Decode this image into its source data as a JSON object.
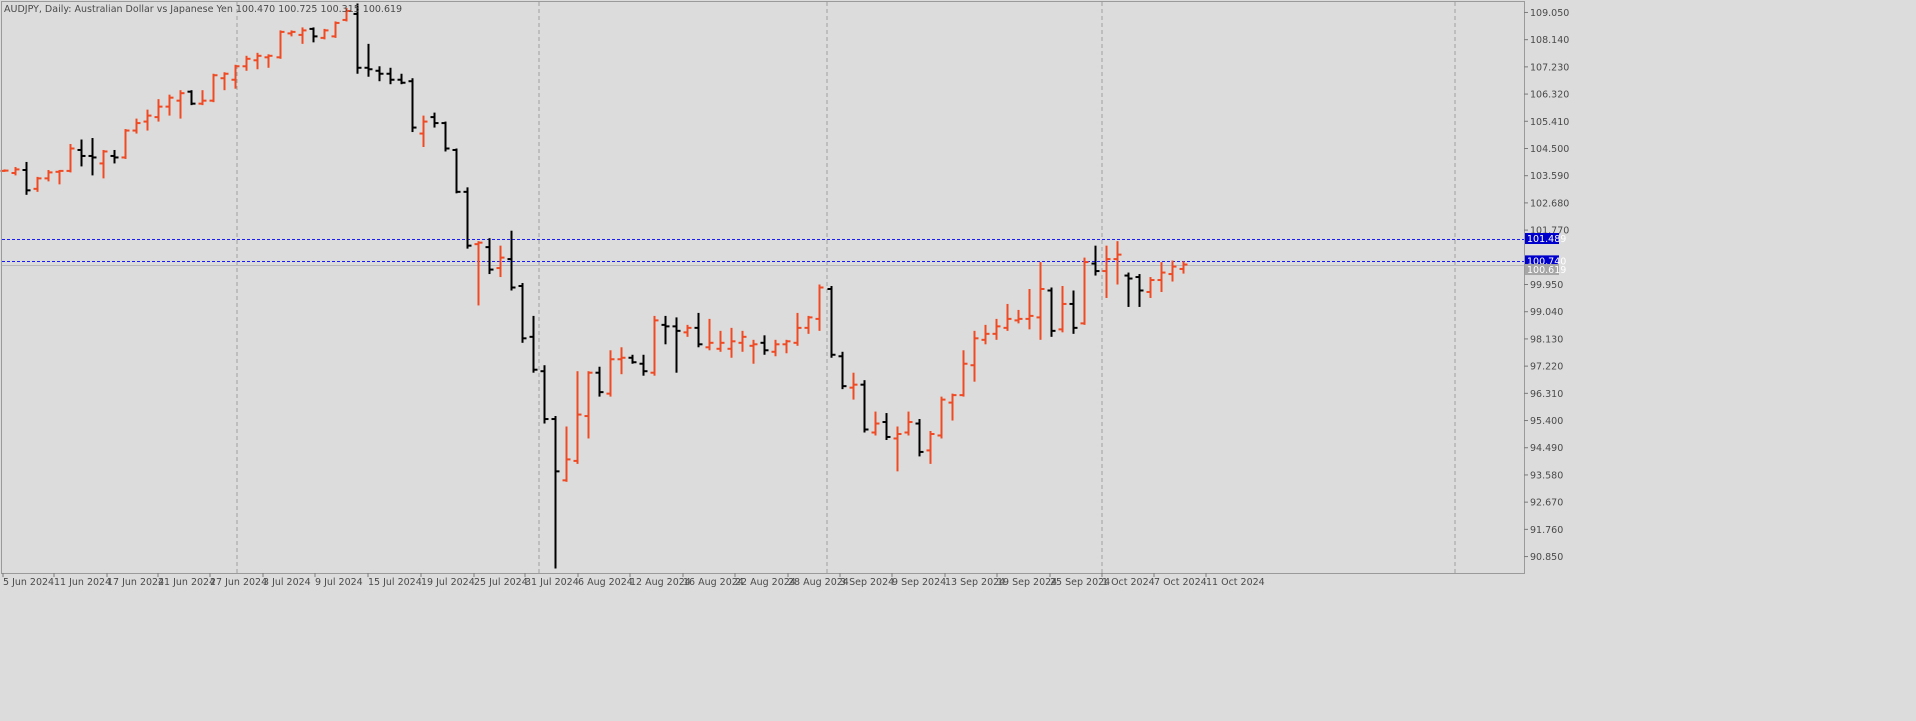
{
  "header": {
    "symbol_line": "AUDJPY, Daily:  Australian Dollar vs Japanese Yen  100.470 100.725 100.315 100.619"
  },
  "colors": {
    "background": "#dcdcdc",
    "bull": "#ef4a23",
    "bear": "#000000",
    "grid": "#a0a0a0",
    "level_line": "#1a1aff",
    "level_label_bg": "#0000cc",
    "bid_label_bg": "#a6a6a6"
  },
  "chart_data": {
    "type": "ohlc",
    "title": "AUDJPY, Daily:  Australian Dollar vs Japanese Yen",
    "y_ticks": [
      "109.050",
      "108.140",
      "107.230",
      "106.320",
      "105.410",
      "104.500",
      "103.590",
      "102.680",
      "101.770",
      "99.950",
      "99.040",
      "98.130",
      "97.220",
      "96.310",
      "95.400",
      "94.490",
      "93.580",
      "92.670",
      "91.760",
      "90.850"
    ],
    "x_tick_labels": [
      "5 Jun 2024",
      "11 Jun 2024",
      "17 Jun 2024",
      "21 Jun 2024",
      "27 Jun 2024",
      "3 Jul 2024",
      "9 Jul 2024",
      "15 Jul 2024",
      "19 Jul 2024",
      "25 Jul 2024",
      "31 Jul 2024",
      "6 Aug 2024",
      "12 Aug 2024",
      "16 Aug 2024",
      "22 Aug 2024",
      "28 Aug 2024",
      "3 Sep 2024",
      "9 Sep 2024",
      "13 Sep 2024",
      "19 Sep 2024",
      "25 Sep 2024",
      "1 Oct 2024",
      "7 Oct 2024",
      "11 Oct 2024"
    ],
    "horizontal_levels": [
      {
        "price": 101.489,
        "label": "101.489"
      },
      {
        "price": 100.74,
        "label": "100.740"
      }
    ],
    "bid_price": "100.619",
    "ylim": [
      90.3,
      109.4
    ],
    "grid": "vertical-dashed",
    "bars": [
      {
        "o": 103.75,
        "h": 103.8,
        "l": 103.72,
        "c": 103.76
      },
      {
        "o": 103.68,
        "h": 103.88,
        "l": 103.6,
        "c": 103.8
      },
      {
        "o": 103.78,
        "h": 104.05,
        "l": 102.95,
        "c": 103.1
      },
      {
        "o": 103.15,
        "h": 103.55,
        "l": 103.05,
        "c": 103.5
      },
      {
        "o": 103.5,
        "h": 103.78,
        "l": 103.4,
        "c": 103.7
      },
      {
        "o": 103.72,
        "h": 103.78,
        "l": 103.3,
        "c": 103.75
      },
      {
        "o": 103.75,
        "h": 104.65,
        "l": 103.7,
        "c": 104.5
      },
      {
        "o": 104.45,
        "h": 104.8,
        "l": 103.9,
        "c": 104.25
      },
      {
        "o": 104.25,
        "h": 104.85,
        "l": 103.6,
        "c": 104.2
      },
      {
        "o": 104.0,
        "h": 104.45,
        "l": 103.5,
        "c": 104.4
      },
      {
        "o": 104.25,
        "h": 104.45,
        "l": 104.0,
        "c": 104.2
      },
      {
        "o": 104.2,
        "h": 105.15,
        "l": 104.15,
        "c": 105.1
      },
      {
        "o": 105.1,
        "h": 105.5,
        "l": 105.0,
        "c": 105.35
      },
      {
        "o": 105.4,
        "h": 105.8,
        "l": 105.1,
        "c": 105.6
      },
      {
        "o": 105.55,
        "h": 106.15,
        "l": 105.4,
        "c": 105.9
      },
      {
        "o": 105.9,
        "h": 106.3,
        "l": 105.6,
        "c": 106.2
      },
      {
        "o": 106.1,
        "h": 106.45,
        "l": 105.5,
        "c": 106.35
      },
      {
        "o": 106.4,
        "h": 106.45,
        "l": 105.95,
        "c": 106.0
      },
      {
        "o": 106.0,
        "h": 106.45,
        "l": 105.95,
        "c": 106.1
      },
      {
        "o": 106.1,
        "h": 107.0,
        "l": 106.05,
        "c": 106.95
      },
      {
        "o": 106.85,
        "h": 107.05,
        "l": 106.45,
        "c": 107.0
      },
      {
        "o": 106.8,
        "h": 107.3,
        "l": 106.5,
        "c": 107.25
      },
      {
        "o": 107.25,
        "h": 107.6,
        "l": 107.1,
        "c": 107.5
      },
      {
        "o": 107.45,
        "h": 107.7,
        "l": 107.15,
        "c": 107.6
      },
      {
        "o": 107.55,
        "h": 107.65,
        "l": 107.2,
        "c": 107.6
      },
      {
        "o": 107.55,
        "h": 108.45,
        "l": 107.5,
        "c": 108.4
      },
      {
        "o": 108.35,
        "h": 108.45,
        "l": 108.25,
        "c": 108.4
      },
      {
        "o": 108.3,
        "h": 108.55,
        "l": 108.0,
        "c": 108.45
      },
      {
        "o": 108.5,
        "h": 108.55,
        "l": 108.05,
        "c": 108.25
      },
      {
        "o": 108.2,
        "h": 108.5,
        "l": 108.15,
        "c": 108.45
      },
      {
        "o": 108.25,
        "h": 108.75,
        "l": 108.2,
        "c": 108.7
      },
      {
        "o": 108.8,
        "h": 109.2,
        "l": 108.75,
        "c": 109.1
      },
      {
        "o": 109.0,
        "h": 109.35,
        "l": 107.0,
        "c": 107.2
      },
      {
        "o": 107.2,
        "h": 108.0,
        "l": 106.9,
        "c": 107.15
      },
      {
        "o": 107.1,
        "h": 107.25,
        "l": 106.75,
        "c": 107.0
      },
      {
        "o": 107.0,
        "h": 107.2,
        "l": 106.65,
        "c": 106.8
      },
      {
        "o": 106.8,
        "h": 107.0,
        "l": 106.65,
        "c": 106.7
      },
      {
        "o": 106.75,
        "h": 106.85,
        "l": 105.05,
        "c": 105.2
      },
      {
        "o": 105.0,
        "h": 105.6,
        "l": 104.55,
        "c": 105.4
      },
      {
        "o": 105.55,
        "h": 105.7,
        "l": 105.2,
        "c": 105.35
      },
      {
        "o": 105.35,
        "h": 105.4,
        "l": 104.4,
        "c": 104.5
      },
      {
        "o": 104.45,
        "h": 104.5,
        "l": 103.0,
        "c": 103.05
      },
      {
        "o": 103.05,
        "h": 103.2,
        "l": 101.15,
        "c": 101.25
      },
      {
        "o": 101.3,
        "h": 101.4,
        "l": 99.25,
        "c": 101.35
      },
      {
        "o": 101.2,
        "h": 101.5,
        "l": 100.3,
        "c": 100.45
      },
      {
        "o": 100.5,
        "h": 101.25,
        "l": 100.2,
        "c": 100.85
      },
      {
        "o": 100.8,
        "h": 101.75,
        "l": 99.75,
        "c": 99.85
      },
      {
        "o": 99.9,
        "h": 100.0,
        "l": 98.0,
        "c": 98.15
      },
      {
        "o": 98.2,
        "h": 98.9,
        "l": 97.0,
        "c": 97.1
      },
      {
        "o": 97.05,
        "h": 97.25,
        "l": 95.3,
        "c": 95.45
      },
      {
        "o": 95.45,
        "h": 95.55,
        "l": 90.45,
        "c": 93.7
      },
      {
        "o": 93.4,
        "h": 95.2,
        "l": 93.35,
        "c": 94.1
      },
      {
        "o": 94.05,
        "h": 97.05,
        "l": 93.95,
        "c": 95.6
      },
      {
        "o": 95.55,
        "h": 97.05,
        "l": 94.8,
        "c": 97.0
      },
      {
        "o": 97.0,
        "h": 97.2,
        "l": 96.2,
        "c": 96.35
      },
      {
        "o": 96.3,
        "h": 97.75,
        "l": 96.2,
        "c": 97.45
      },
      {
        "o": 97.45,
        "h": 97.85,
        "l": 96.95,
        "c": 97.5
      },
      {
        "o": 97.5,
        "h": 97.6,
        "l": 97.3,
        "c": 97.35
      },
      {
        "o": 97.3,
        "h": 97.6,
        "l": 96.9,
        "c": 97.05
      },
      {
        "o": 97.0,
        "h": 98.9,
        "l": 96.9,
        "c": 98.75
      },
      {
        "o": 98.6,
        "h": 98.9,
        "l": 97.95,
        "c": 98.55
      },
      {
        "o": 98.55,
        "h": 98.85,
        "l": 97.0,
        "c": 98.4
      },
      {
        "o": 98.35,
        "h": 98.6,
        "l": 98.2,
        "c": 98.5
      },
      {
        "o": 98.5,
        "h": 99.0,
        "l": 97.85,
        "c": 97.95
      },
      {
        "o": 97.85,
        "h": 98.8,
        "l": 97.75,
        "c": 98.0
      },
      {
        "o": 97.8,
        "h": 98.4,
        "l": 97.7,
        "c": 98.0
      },
      {
        "o": 97.8,
        "h": 98.5,
        "l": 97.5,
        "c": 98.05
      },
      {
        "o": 98.0,
        "h": 98.4,
        "l": 97.7,
        "c": 98.2
      },
      {
        "o": 97.9,
        "h": 98.1,
        "l": 97.3,
        "c": 97.95
      },
      {
        "o": 98.0,
        "h": 98.25,
        "l": 97.6,
        "c": 97.75
      },
      {
        "o": 97.7,
        "h": 98.1,
        "l": 97.55,
        "c": 97.95
      },
      {
        "o": 97.95,
        "h": 98.1,
        "l": 97.65,
        "c": 98.05
      },
      {
        "o": 98.0,
        "h": 99.0,
        "l": 97.9,
        "c": 98.5
      },
      {
        "o": 98.5,
        "h": 98.9,
        "l": 98.3,
        "c": 98.85
      },
      {
        "o": 98.8,
        "h": 99.95,
        "l": 98.4,
        "c": 99.85
      },
      {
        "o": 99.8,
        "h": 99.9,
        "l": 97.5,
        "c": 97.6
      },
      {
        "o": 97.55,
        "h": 97.7,
        "l": 96.45,
        "c": 96.55
      },
      {
        "o": 96.5,
        "h": 97.0,
        "l": 96.1,
        "c": 96.6
      },
      {
        "o": 96.6,
        "h": 96.75,
        "l": 95.0,
        "c": 95.1
      },
      {
        "o": 95.0,
        "h": 95.7,
        "l": 94.9,
        "c": 95.3
      },
      {
        "o": 95.35,
        "h": 95.65,
        "l": 94.75,
        "c": 94.85
      },
      {
        "o": 94.8,
        "h": 95.2,
        "l": 93.7,
        "c": 94.95
      },
      {
        "o": 95.0,
        "h": 95.7,
        "l": 94.9,
        "c": 95.35
      },
      {
        "o": 95.3,
        "h": 95.45,
        "l": 94.2,
        "c": 94.35
      },
      {
        "o": 94.4,
        "h": 95.05,
        "l": 93.95,
        "c": 94.95
      },
      {
        "o": 94.9,
        "h": 96.2,
        "l": 94.8,
        "c": 96.1
      },
      {
        "o": 96.0,
        "h": 96.3,
        "l": 95.4,
        "c": 96.25
      },
      {
        "o": 96.25,
        "h": 97.75,
        "l": 96.2,
        "c": 97.3
      },
      {
        "o": 97.25,
        "h": 98.4,
        "l": 96.7,
        "c": 98.15
      },
      {
        "o": 98.1,
        "h": 98.6,
        "l": 97.95,
        "c": 98.3
      },
      {
        "o": 98.3,
        "h": 98.8,
        "l": 98.1,
        "c": 98.55
      },
      {
        "o": 98.5,
        "h": 99.3,
        "l": 98.4,
        "c": 98.8
      },
      {
        "o": 98.75,
        "h": 99.1,
        "l": 98.65,
        "c": 98.8
      },
      {
        "o": 98.8,
        "h": 99.8,
        "l": 98.45,
        "c": 98.9
      },
      {
        "o": 98.85,
        "h": 100.7,
        "l": 98.1,
        "c": 99.8
      },
      {
        "o": 99.75,
        "h": 99.85,
        "l": 98.2,
        "c": 98.4
      },
      {
        "o": 98.45,
        "h": 99.9,
        "l": 98.35,
        "c": 99.3
      },
      {
        "o": 99.3,
        "h": 99.75,
        "l": 98.3,
        "c": 98.5
      },
      {
        "o": 98.65,
        "h": 100.85,
        "l": 98.6,
        "c": 100.7
      },
      {
        "o": 100.65,
        "h": 101.25,
        "l": 100.25,
        "c": 100.4
      },
      {
        "o": 100.4,
        "h": 101.25,
        "l": 99.5,
        "c": 100.8
      },
      {
        "o": 100.8,
        "h": 101.4,
        "l": 99.95,
        "c": 100.95
      },
      {
        "o": 100.25,
        "h": 100.35,
        "l": 99.2,
        "c": 100.15
      },
      {
        "o": 100.2,
        "h": 100.3,
        "l": 99.2,
        "c": 99.75
      },
      {
        "o": 99.7,
        "h": 100.2,
        "l": 99.5,
        "c": 100.1
      },
      {
        "o": 100.1,
        "h": 100.7,
        "l": 99.7,
        "c": 100.35
      },
      {
        "o": 100.3,
        "h": 100.75,
        "l": 100.05,
        "c": 100.55
      },
      {
        "o": 100.47,
        "h": 100.725,
        "l": 100.315,
        "c": 100.619
      }
    ]
  }
}
